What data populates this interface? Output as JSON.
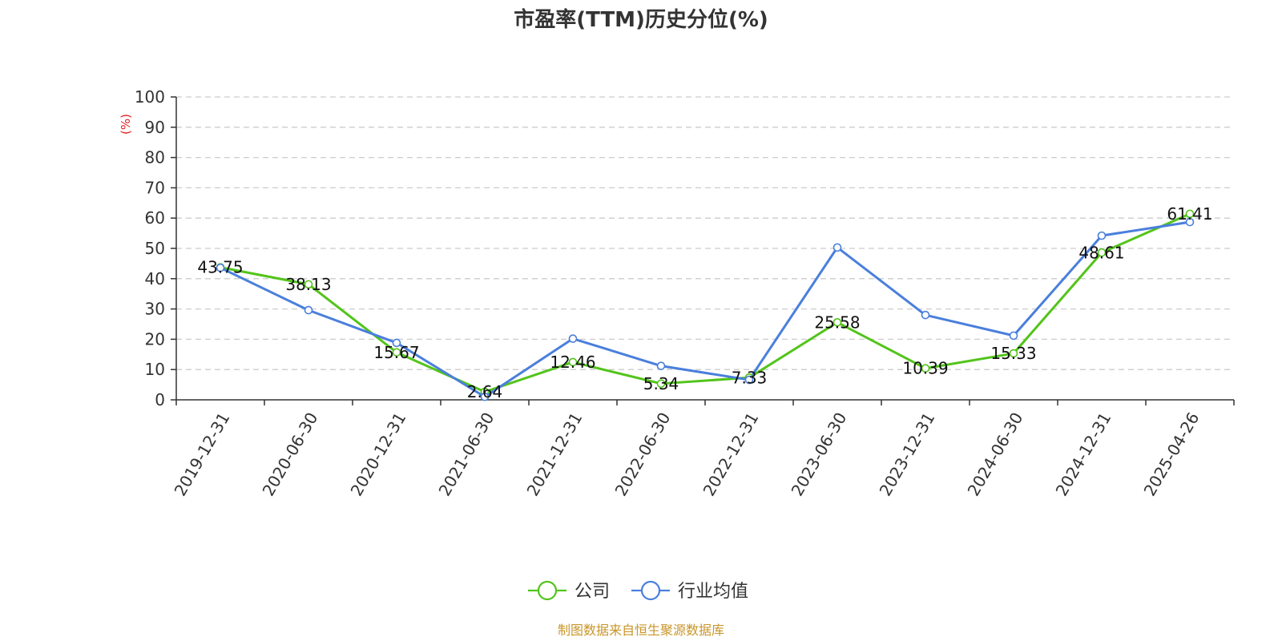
{
  "chart_data": {
    "type": "line",
    "title": "市盈率(TTM)历史分位(%)",
    "y_unit": "(%)",
    "ylim": [
      0,
      100
    ],
    "y_ticks": [
      0,
      10,
      20,
      30,
      40,
      50,
      60,
      70,
      80,
      90,
      100
    ],
    "grid": true,
    "legend_position": "bottom",
    "categories": [
      "2019-12-31",
      "2020-06-30",
      "2020-12-31",
      "2021-06-30",
      "2021-12-31",
      "2022-06-30",
      "2022-12-31",
      "2023-06-30",
      "2023-12-31",
      "2024-06-30",
      "2024-12-31",
      "2025-04-26"
    ],
    "series": [
      {
        "name": "公司",
        "color": "#52c41a",
        "values": [
          43.75,
          38.13,
          15.67,
          2.64,
          12.46,
          5.34,
          7.33,
          25.58,
          10.39,
          15.33,
          48.61,
          61.41
        ],
        "labels": [
          "43.75",
          "38.13",
          "15.67",
          "2.64",
          "12.46",
          "5.34",
          "7.33",
          "25.58",
          "10.39",
          "15.33",
          "48.61",
          "61.41"
        ]
      },
      {
        "name": "行业均值",
        "color": "#4a7fdc",
        "values": [
          43.6,
          29.6,
          18.8,
          1.0,
          20.2,
          11.2,
          6.6,
          50.3,
          28.0,
          21.2,
          54.2,
          58.7
        ]
      }
    ],
    "source": "制图数据来自恒生聚源数据库",
    "source_color": "#c8962a",
    "unit_color": "#e02020",
    "axis_color": "#333333",
    "grid_color": "#cccccc"
  }
}
